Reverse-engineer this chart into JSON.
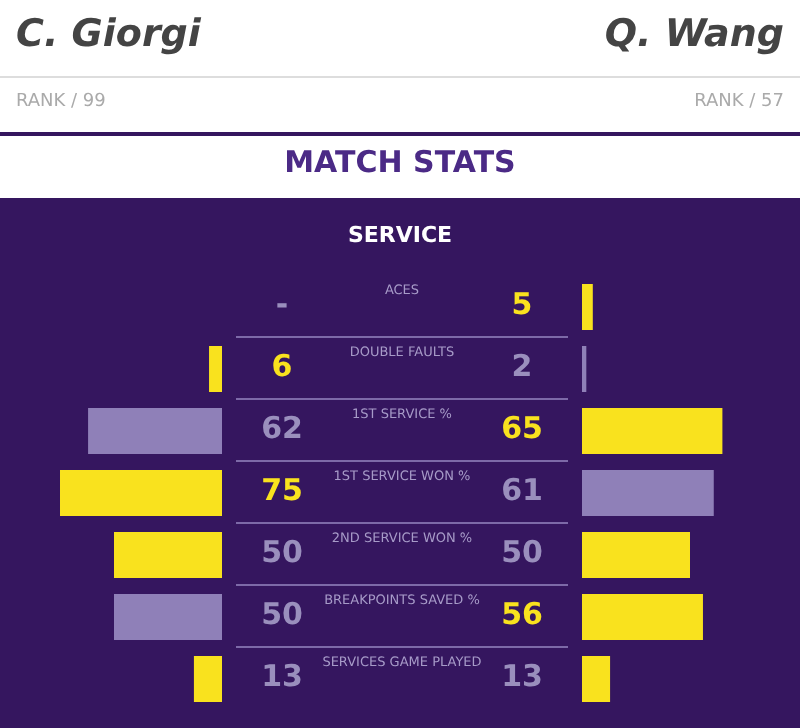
{
  "chart_data": [
    {
      "type": "bar",
      "orientation": "horizontal",
      "title": "MATCH STATS",
      "subtitle": "SERVICE",
      "categories": [
        "ACES",
        "DOUBLE FAULTS",
        "1ST SERVICE %",
        "1ST SERVICE WON %",
        "2ND SERVICE WON %",
        "BREAKPOINTS SAVED %",
        "SERVICES GAME PLAYED"
      ],
      "series": [
        {
          "name": "C. Giorgi",
          "values": [
            null,
            6,
            62,
            75,
            50,
            50,
            13
          ],
          "value_labels": [
            "-",
            "6",
            "62",
            "75",
            "50",
            "50",
            "13"
          ],
          "colors": [
            "#8f80b8",
            "#f9e21e",
            "#8f80b8",
            "#f9e21e",
            "#f9e21e",
            "#8f80b8",
            "#f9e21e"
          ]
        }
      ],
      "annotations": [
        "RANK / 99"
      ]
    },
    {
      "type": "bar",
      "orientation": "horizontal",
      "categories": [
        null,
        null,
        null,
        null,
        null,
        null,
        null
      ],
      "series": [
        {
          "name": "Q. Wang",
          "values": [
            5,
            2,
            65,
            61,
            50,
            56,
            13
          ],
          "value_labels": [
            "5",
            "2",
            "65",
            "61",
            "50",
            "56",
            "13"
          ],
          "colors": [
            "#f9e21e",
            "#8f80b8",
            "#f9e21e",
            "#8f80b8",
            "#f9e21e",
            "#f9e21e",
            "#f9e21e"
          ]
        }
      ],
      "annotations": [
        "RANK / 57"
      ]
    }
  ]
}
